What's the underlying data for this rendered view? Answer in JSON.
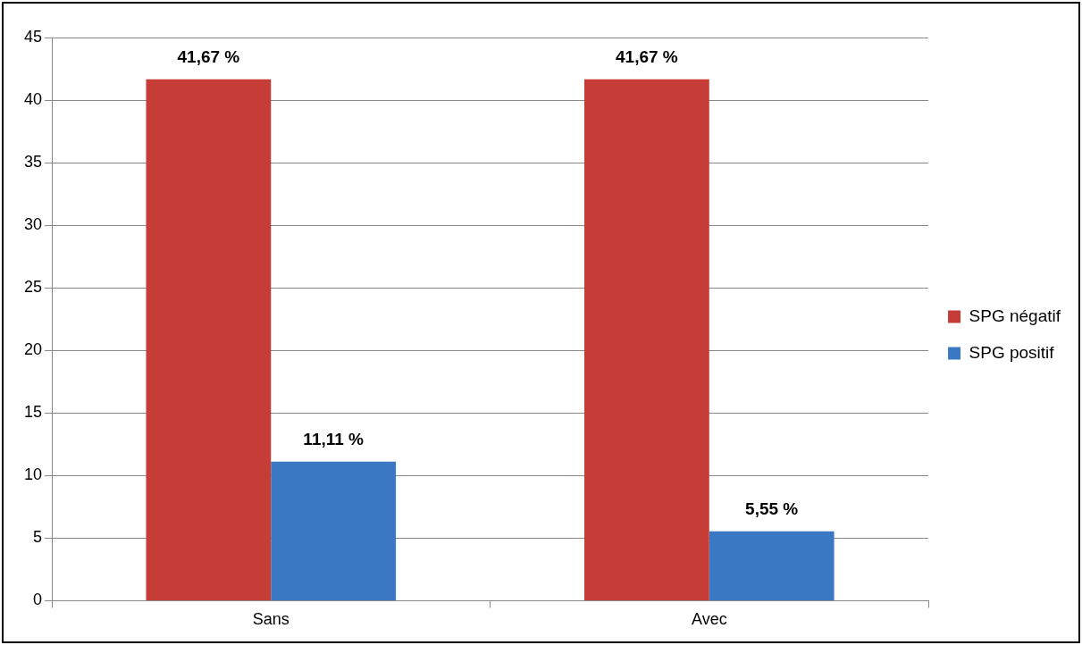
{
  "chart_data": {
    "type": "bar",
    "categories": [
      "Sans",
      "Avec"
    ],
    "series": [
      {
        "name": "SPG négatif",
        "color": "#c63d37",
        "values": [
          41.67,
          41.67
        ],
        "value_labels": [
          "41,67 %",
          "41,67 %"
        ]
      },
      {
        "name": "SPG positif",
        "color": "#3b78c4",
        "values": [
          11.11,
          5.55
        ],
        "value_labels": [
          "11,11 %",
          "5,55 %"
        ]
      }
    ],
    "ylim": [
      0,
      45
    ],
    "yticks": [
      0,
      5,
      10,
      15,
      20,
      25,
      30,
      35,
      40,
      45
    ],
    "grid": "y",
    "legend": "right"
  }
}
